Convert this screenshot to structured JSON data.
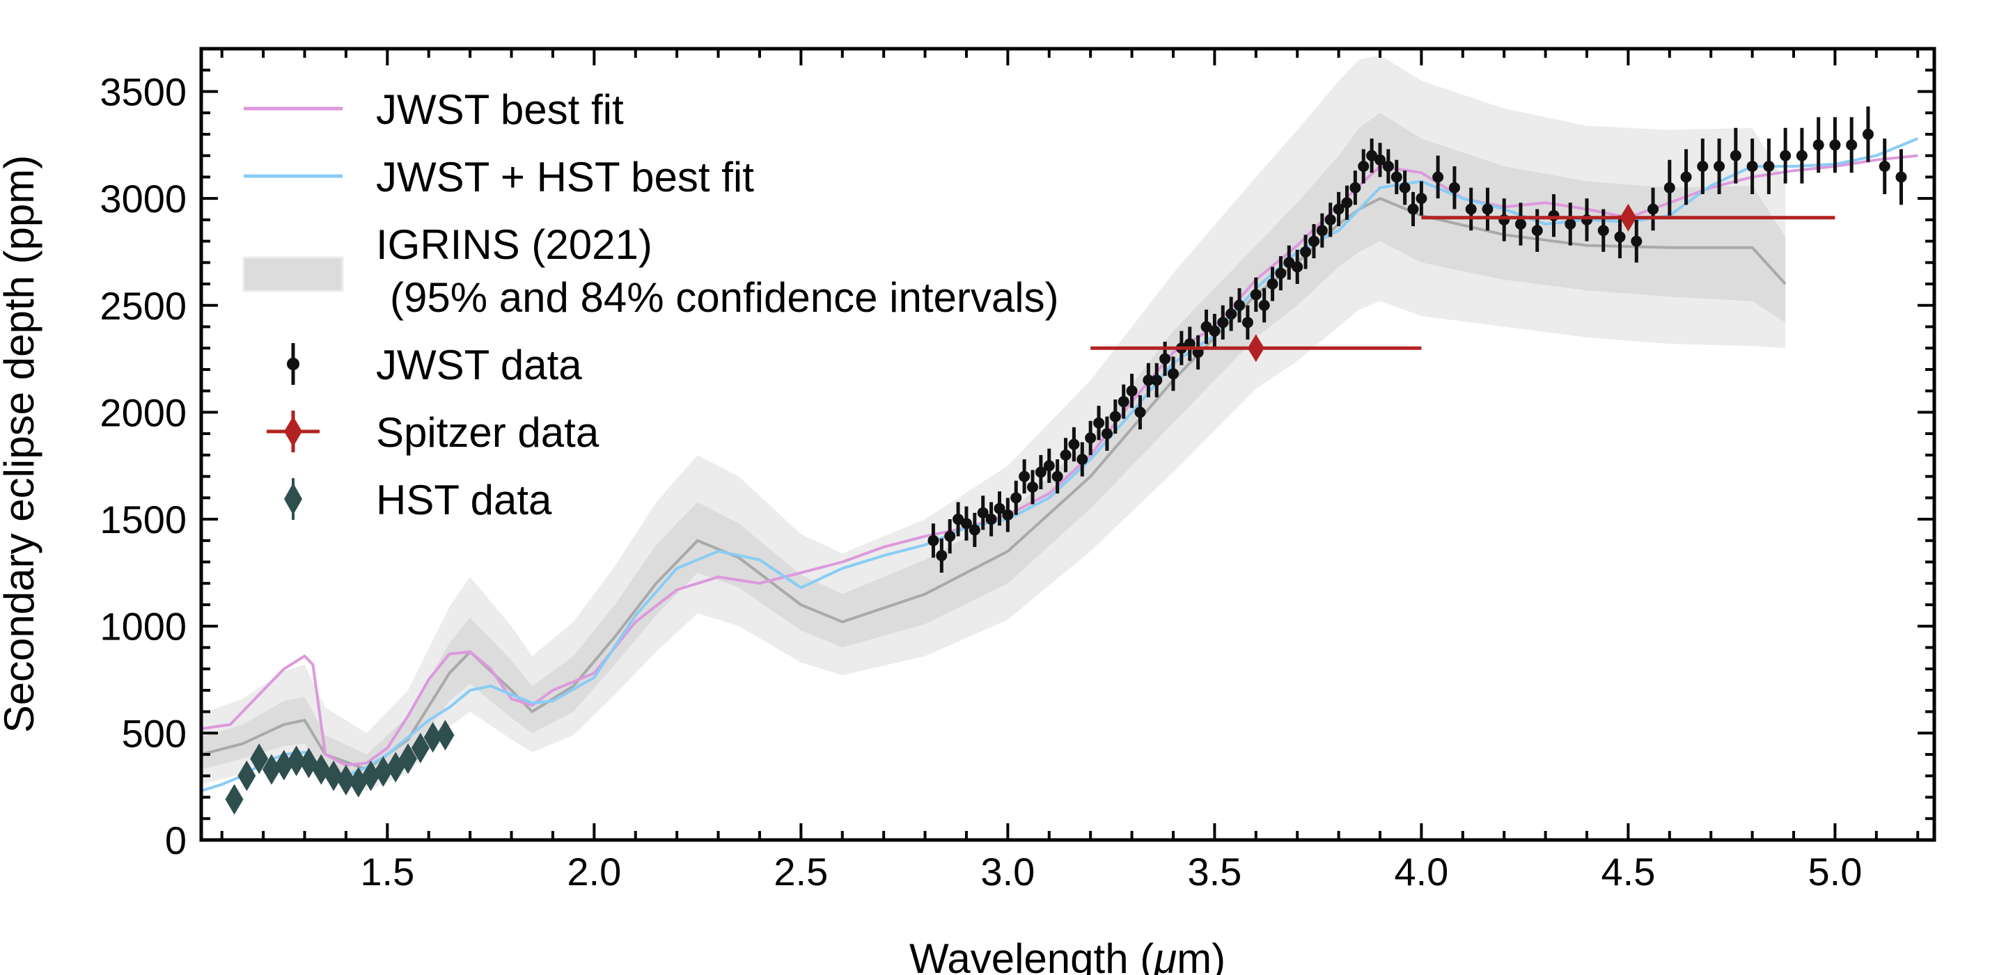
{
  "chart_data": {
    "type": "line",
    "xlabel_prefix": "Wavelength (",
    "xlabel_unit": "μ",
    "xlabel_suffix": "m)",
    "ylabel": "Secondary eclipse depth (ppm)",
    "xlim": [
      1.05,
      5.24
    ],
    "ylim": [
      0,
      3700
    ],
    "xticks": [
      1.5,
      2.0,
      2.5,
      3.0,
      3.5,
      4.0,
      4.5,
      5.0
    ],
    "xtick_labels": [
      "1.5",
      "2.0",
      "2.5",
      "3.0",
      "3.5",
      "4.0",
      "4.5",
      "5.0"
    ],
    "yticks": [
      0,
      500,
      1000,
      1500,
      2000,
      2500,
      3000,
      3500
    ],
    "ytick_labels": [
      "0",
      "500",
      "1000",
      "1500",
      "2000",
      "2500",
      "3000",
      "3500"
    ],
    "colors": {
      "jwst_fit": "#dd99dd",
      "jwst_hst_fit": "#88ccf5",
      "igrins_median": "#a9a9a9",
      "igrins_band_outer": "#ececec",
      "igrins_band_inner": "#dcdcdc",
      "jwst_data": "#111111",
      "spitzer": "#b22222",
      "hst": "#2f4f4f"
    },
    "legend": {
      "jwst_fit": "JWST best fit",
      "jwst_hst_fit": "JWST + HST best fit",
      "igrins_line1": "IGRINS (2021)",
      "igrins_line2": "(95% and 84% confidence intervals)",
      "jwst_data": "JWST data",
      "spitzer": "Spitzer data",
      "hst": "HST data"
    },
    "igrins_x": [
      1.05,
      1.15,
      1.25,
      1.3,
      1.35,
      1.45,
      1.55,
      1.65,
      1.7,
      1.8,
      1.85,
      1.95,
      2.05,
      2.15,
      2.25,
      2.35,
      2.5,
      2.6,
      2.8,
      3.0,
      3.2,
      3.4,
      3.6,
      3.7,
      3.8,
      3.85,
      3.9,
      4.0,
      4.2,
      4.4,
      4.6,
      4.8,
      4.88
    ],
    "igrins_median": [
      400,
      450,
      540,
      560,
      400,
      330,
      470,
      780,
      880,
      700,
      600,
      720,
      950,
      1200,
      1400,
      1320,
      1100,
      1020,
      1150,
      1350,
      1700,
      2150,
      2550,
      2700,
      2880,
      2950,
      3000,
      2920,
      2830,
      2780,
      2770,
      2770,
      2600
    ],
    "igrins_inner_lo": [
      330,
      380,
      440,
      450,
      330,
      280,
      390,
      650,
      730,
      570,
      500,
      600,
      820,
      1050,
      1250,
      1180,
      980,
      900,
      1010,
      1200,
      1550,
      1950,
      2350,
      2500,
      2680,
      2750,
      2800,
      2700,
      2620,
      2570,
      2540,
      2520,
      2420
    ],
    "igrins_inner_hi": [
      480,
      540,
      650,
      670,
      490,
      400,
      580,
      920,
      1040,
      840,
      720,
      860,
      1100,
      1380,
      1580,
      1480,
      1240,
      1150,
      1310,
      1520,
      1880,
      2380,
      2780,
      2980,
      3200,
      3330,
      3400,
      3280,
      3150,
      3080,
      3050,
      3060,
      2820
    ],
    "igrins_outer_lo": [
      260,
      310,
      360,
      370,
      280,
      230,
      310,
      530,
      600,
      470,
      410,
      490,
      680,
      880,
      1060,
      1000,
      830,
      770,
      860,
      1030,
      1350,
      1720,
      2110,
      2240,
      2400,
      2480,
      2520,
      2450,
      2400,
      2350,
      2320,
      2310,
      2300
    ],
    "igrins_outer_hi": [
      590,
      660,
      790,
      820,
      620,
      500,
      700,
      1090,
      1230,
      1000,
      860,
      1020,
      1280,
      1580,
      1800,
      1700,
      1430,
      1340,
      1500,
      1750,
      2150,
      2650,
      3100,
      3320,
      3550,
      3650,
      3670,
      3550,
      3420,
      3340,
      3320,
      3330,
      3080
    ],
    "jwst_fit_x": [
      1.05,
      1.12,
      1.2,
      1.25,
      1.3,
      1.32,
      1.35,
      1.4,
      1.45,
      1.5,
      1.55,
      1.6,
      1.65,
      1.7,
      1.75,
      1.8,
      1.85,
      1.9,
      2.0,
      2.1,
      2.2,
      2.3,
      2.4,
      2.5,
      2.6,
      2.7,
      2.8,
      2.9,
      3.0,
      3.1,
      3.2,
      3.3,
      3.4,
      3.5,
      3.6,
      3.7,
      3.8,
      3.9,
      4.0,
      4.1,
      4.2,
      4.3,
      4.4,
      4.5,
      4.6,
      4.7,
      4.8,
      4.9,
      5.0,
      5.1,
      5.2
    ],
    "jwst_fit_y": [
      520,
      540,
      700,
      800,
      860,
      820,
      400,
      350,
      360,
      430,
      580,
      750,
      870,
      880,
      800,
      660,
      630,
      700,
      780,
      1020,
      1170,
      1230,
      1200,
      1250,
      1300,
      1370,
      1420,
      1460,
      1520,
      1620,
      1800,
      2050,
      2280,
      2400,
      2620,
      2780,
      2970,
      3150,
      3120,
      3000,
      2960,
      2980,
      2950,
      2910,
      2980,
      3050,
      3100,
      3130,
      3150,
      3180,
      3200
    ],
    "jwst_hst_fit_x": [
      1.05,
      1.1,
      1.15,
      1.2,
      1.25,
      1.3,
      1.35,
      1.4,
      1.45,
      1.5,
      1.55,
      1.6,
      1.65,
      1.7,
      1.75,
      1.8,
      1.85,
      1.9,
      2.0,
      2.1,
      2.2,
      2.3,
      2.4,
      2.5,
      2.6,
      2.7,
      2.8,
      2.9,
      3.0,
      3.1,
      3.2,
      3.3,
      3.4,
      3.5,
      3.6,
      3.7,
      3.8,
      3.9,
      4.0,
      4.1,
      4.2,
      4.3,
      4.4,
      4.5,
      4.6,
      4.7,
      4.8,
      4.9,
      5.0,
      5.1,
      5.2
    ],
    "jwst_hst_fit_y": [
      230,
      260,
      300,
      360,
      400,
      410,
      310,
      300,
      340,
      400,
      480,
      560,
      620,
      700,
      720,
      680,
      640,
      650,
      760,
      1050,
      1270,
      1350,
      1310,
      1180,
      1270,
      1330,
      1380,
      1460,
      1500,
      1600,
      1780,
      2000,
      2230,
      2360,
      2580,
      2750,
      2850,
      3050,
      3080,
      3000,
      2950,
      2880,
      2900,
      2890,
      2920,
      3060,
      3150,
      3150,
      3160,
      3200,
      3280
    ],
    "jwst_data_x": [
      2.82,
      2.84,
      2.86,
      2.88,
      2.9,
      2.92,
      2.94,
      2.96,
      2.98,
      3.0,
      3.02,
      3.04,
      3.06,
      3.08,
      3.1,
      3.12,
      3.14,
      3.16,
      3.18,
      3.2,
      3.22,
      3.24,
      3.26,
      3.28,
      3.3,
      3.32,
      3.34,
      3.36,
      3.38,
      3.4,
      3.42,
      3.44,
      3.46,
      3.48,
      3.5,
      3.52,
      3.54,
      3.56,
      3.58,
      3.6,
      3.62,
      3.64,
      3.66,
      3.68,
      3.7,
      3.72,
      3.74,
      3.76,
      3.78,
      3.8,
      3.82,
      3.84,
      3.86,
      3.88,
      3.9,
      3.92,
      3.94,
      3.96,
      3.98,
      4.0,
      4.04,
      4.08,
      4.12,
      4.16,
      4.2,
      4.24,
      4.28,
      4.32,
      4.36,
      4.4,
      4.44,
      4.48,
      4.52,
      4.56,
      4.6,
      4.64,
      4.68,
      4.72,
      4.76,
      4.8,
      4.84,
      4.88,
      4.92,
      4.96,
      5.0,
      5.04,
      5.08,
      5.12,
      5.16
    ],
    "jwst_data_y": [
      1400,
      1330,
      1420,
      1500,
      1480,
      1450,
      1530,
      1500,
      1550,
      1520,
      1600,
      1700,
      1650,
      1720,
      1750,
      1700,
      1800,
      1850,
      1780,
      1880,
      1950,
      1900,
      1980,
      2050,
      2100,
      2000,
      2150,
      2150,
      2250,
      2180,
      2300,
      2320,
      2280,
      2400,
      2380,
      2420,
      2460,
      2500,
      2420,
      2550,
      2500,
      2600,
      2650,
      2700,
      2680,
      2750,
      2800,
      2850,
      2900,
      2950,
      2980,
      3050,
      3150,
      3200,
      3180,
      3150,
      3100,
      3050,
      2950,
      3000,
      3100,
      3050,
      2950,
      2950,
      2900,
      2880,
      2850,
      2920,
      2880,
      2900,
      2850,
      2820,
      2800,
      2950,
      3050,
      3100,
      3150,
      3150,
      3200,
      3150,
      3150,
      3200,
      3200,
      3250,
      3250,
      3250,
      3300,
      3150,
      3100
    ],
    "jwst_data_err": [
      80,
      80,
      80,
      80,
      80,
      80,
      80,
      80,
      80,
      80,
      80,
      80,
      80,
      80,
      80,
      80,
      80,
      80,
      80,
      80,
      80,
      80,
      80,
      80,
      80,
      80,
      80,
      80,
      80,
      80,
      80,
      80,
      80,
      80,
      80,
      80,
      80,
      80,
      80,
      80,
      80,
      80,
      80,
      80,
      80,
      80,
      80,
      80,
      80,
      80,
      80,
      80,
      80,
      80,
      80,
      80,
      80,
      80,
      80,
      80,
      100,
      100,
      100,
      100,
      100,
      100,
      100,
      100,
      100,
      100,
      100,
      100,
      100,
      100,
      130,
      130,
      130,
      130,
      130,
      130,
      130,
      130,
      130,
      130,
      130,
      130,
      130,
      130,
      130
    ],
    "spitzer_x": [
      3.6,
      4.5
    ],
    "spitzer_y": [
      2300,
      2910
    ],
    "spitzer_xerr_lo": [
      3.2,
      4.0
    ],
    "spitzer_xerr_hi": [
      4.0,
      5.0
    ],
    "spitzer_yerr": [
      40,
      50
    ],
    "hst_x": [
      1.13,
      1.16,
      1.19,
      1.22,
      1.25,
      1.28,
      1.31,
      1.34,
      1.37,
      1.4,
      1.43,
      1.46,
      1.49,
      1.52,
      1.55,
      1.58,
      1.61,
      1.64
    ],
    "hst_y": [
      190,
      300,
      380,
      330,
      350,
      370,
      360,
      330,
      300,
      280,
      270,
      300,
      320,
      340,
      380,
      430,
      480,
      490
    ],
    "hst_yerr": [
      25,
      25,
      25,
      25,
      25,
      25,
      25,
      25,
      25,
      25,
      25,
      25,
      25,
      25,
      25,
      25,
      25,
      25
    ]
  }
}
